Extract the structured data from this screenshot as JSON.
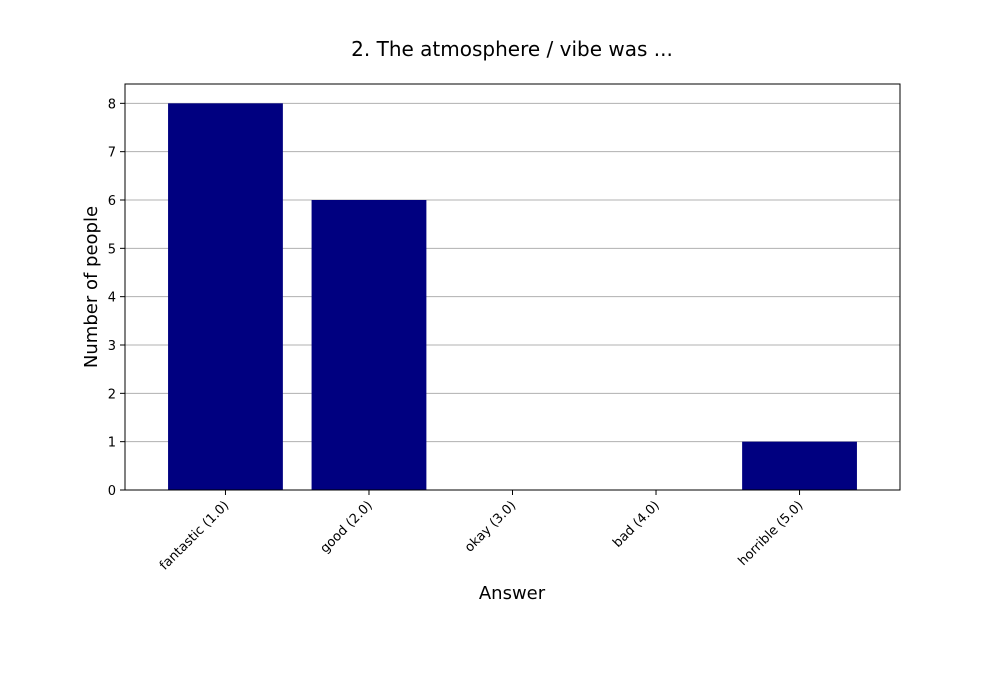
{
  "chart_data": {
    "type": "bar",
    "title": "2. The atmosphere / vibe was ...",
    "xlabel": "Answer",
    "ylabel": "Number of people",
    "categories": [
      "fantastic (1.0)",
      "good (2.0)",
      "okay (3.0)",
      "bad (4.0)",
      "horrible (5.0)"
    ],
    "values": [
      8,
      6,
      0,
      0,
      1
    ],
    "ylim": [
      0,
      8.4
    ],
    "yticks": [
      "0",
      "1",
      "2",
      "3",
      "4",
      "5",
      "6",
      "7",
      "8"
    ],
    "grid": "horizontal",
    "bar_color": "#000080"
  }
}
